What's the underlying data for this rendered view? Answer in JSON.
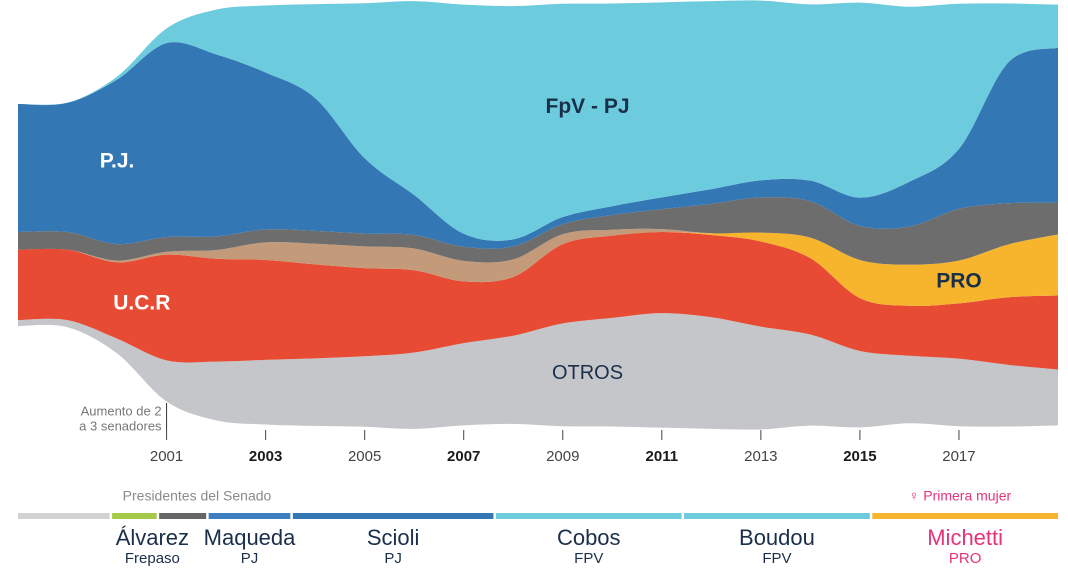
{
  "chart_data": {
    "type": "stream",
    "x": [
      1998,
      1999,
      2000,
      2001,
      2002,
      2003,
      2004,
      2005,
      2006,
      2007,
      2008,
      2009,
      2010,
      2011,
      2012,
      2013,
      2014,
      2015,
      2016,
      2017,
      2018,
      2019
    ],
    "xlim": [
      1998,
      2019
    ],
    "xticks": [
      2001,
      2003,
      2005,
      2007,
      2009,
      2011,
      2013,
      2015,
      2017
    ],
    "xticks_bold": [
      false,
      true,
      false,
      true,
      false,
      true,
      false,
      true,
      false
    ],
    "series": [
      {
        "name": "OTROS",
        "color": "#c5c6ca",
        "label_color": "#1a2f4a",
        "label_bold": false,
        "values": [
          1,
          1.2,
          2.5,
          7,
          10,
          11,
          11.5,
          12,
          13,
          14,
          15,
          17.5,
          18.5,
          19.5,
          19,
          17.5,
          15.5,
          13,
          11.5,
          11.5,
          10.5,
          9.5
        ]
      },
      {
        "name": "U.C.R",
        "color": "#e84b33",
        "label_color": "#ffffff",
        "label_bold": true,
        "values": [
          12,
          12,
          13,
          18,
          17.5,
          17,
          16,
          15,
          14,
          10.5,
          10,
          13.5,
          14,
          13.8,
          14,
          14.5,
          13,
          9,
          8.5,
          9.4,
          11.5,
          12.6
        ]
      },
      {
        "name": "PRO",
        "color": "#f7b52d",
        "label_color": "#1a2f4a",
        "label_bold": true,
        "values": [
          0,
          0,
          0,
          0,
          0,
          0,
          0,
          0,
          0,
          0,
          0,
          0,
          0,
          0,
          0.3,
          1.5,
          3.5,
          6.5,
          7,
          7.3,
          9,
          10.4
        ]
      },
      {
        "color": "#c39a7a",
        "values": [
          0,
          0,
          0.3,
          0.5,
          1.5,
          3,
          3.5,
          3.7,
          3.7,
          3.5,
          3,
          1.7,
          1,
          0.5,
          0,
          0,
          0,
          0,
          0,
          0,
          0,
          0
        ]
      },
      {
        "color": "#6d6d6d",
        "values": [
          3,
          3,
          2.8,
          2.5,
          2.3,
          2.2,
          2.2,
          2.2,
          2.3,
          2.4,
          2.2,
          1.7,
          2.5,
          3.4,
          5,
          6,
          6.2,
          5.8,
          6.5,
          8.8,
          7,
          5.4
        ]
      },
      {
        "name": "P.J.",
        "color": "#3377b5",
        "label_color": "#ffffff",
        "label_bold": true,
        "values": [
          21.8,
          22,
          28,
          33,
          31,
          26.7,
          22.6,
          12.8,
          6.8,
          2.2,
          1.2,
          1.2,
          1.5,
          2,
          2.5,
          2.9,
          3.5,
          4.8,
          7.6,
          10.2,
          24,
          26.4
        ]
      },
      {
        "name": "FpV - PJ",
        "color": "#6ccbdc",
        "label_color": "#1a2f4a",
        "label_bold": true,
        "values": [
          0,
          0,
          0.5,
          2.5,
          7.6,
          11.4,
          16,
          26.4,
          33,
          39,
          39.7,
          36.3,
          34.5,
          33.2,
          32,
          30.6,
          30,
          33.2,
          29.8,
          24.7,
          10,
          7.3
        ]
      }
    ],
    "annotation": {
      "lines": [
        "Aumento de 2",
        "a 3 senadores"
      ],
      "x": 2001
    },
    "presidents_title": "Presidentes del Senado",
    "presidents_note": "♀ Primera mujer",
    "presidents": [
      {
        "start": 1998,
        "end": 1999.85,
        "color": "#d3d3d3"
      },
      {
        "start": 1999.9,
        "end": 2000.8,
        "color": "#a6c94a",
        "name": "Álvarez",
        "party": "Frepaso",
        "label_color": "#1a2f4a"
      },
      {
        "start": 2000.85,
        "end": 2001.8,
        "color": "#666666"
      },
      {
        "start": 2001.85,
        "end": 2003.5,
        "color": "#3d7fc1",
        "name": "Maqueda",
        "party": "PJ",
        "label_color": "#1a2f4a"
      },
      {
        "start": 2003.55,
        "end": 2007.6,
        "color": "#3377b5",
        "name": "Scioli",
        "party": "PJ",
        "label_color": "#1a2f4a"
      },
      {
        "start": 2007.65,
        "end": 2011.4,
        "color": "#6ccbdc",
        "name": "Cobos",
        "party": "FPV",
        "label_color": "#1a2f4a"
      },
      {
        "start": 2011.45,
        "end": 2015.2,
        "color": "#6ccbdc",
        "name": "Boudou",
        "party": "FPV",
        "label_color": "#1a2f4a"
      },
      {
        "start": 2015.25,
        "end": 2019,
        "color": "#f7b52d",
        "name": "Michetti",
        "party": "PRO",
        "label_color": "#e6337a"
      }
    ]
  }
}
